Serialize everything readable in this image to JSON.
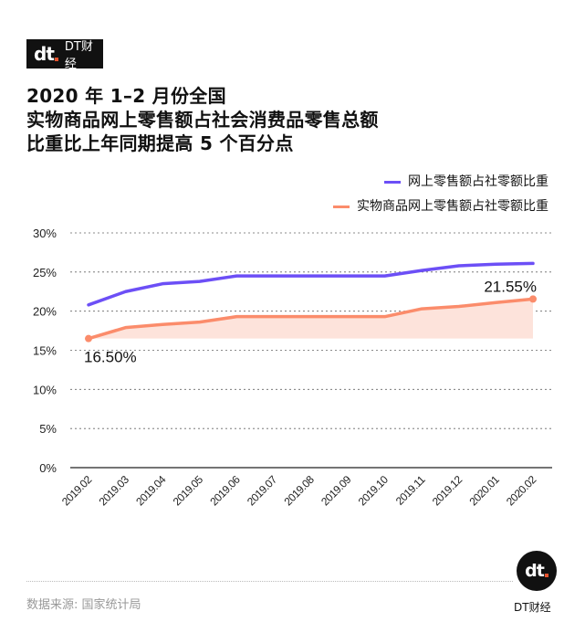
{
  "brand": {
    "mark": "dt",
    "name": "DT财经"
  },
  "title_lines": [
    "2020 年 1–2 月份全国",
    "实物商品网上零售额占社会消费品零售总额",
    "比重比上年同期提高 5 个百分点"
  ],
  "colors": {
    "series1": "#6c4ff6",
    "series2": "#fb8c6b",
    "fill2": "#fde3db"
  },
  "chart_data": {
    "type": "line",
    "title": "2020 年 1–2 月份全国实物商品网上零售额占社会消费品零售总额比重比上年同期提高 5 个百分点",
    "categories": [
      "2019.02",
      "2019.03",
      "2019.04",
      "2019.05",
      "2019.06",
      "2019.07",
      "2019.08",
      "2019.09",
      "2019.10",
      "2019.11",
      "2019.12",
      "2020.01",
      "2020.02"
    ],
    "series": [
      {
        "name": "网上零售额占社零额比重",
        "values": [
          20.8,
          22.5,
          23.5,
          23.8,
          24.5,
          24.5,
          24.5,
          24.5,
          24.5,
          25.2,
          25.8,
          26.0,
          26.1
        ]
      },
      {
        "name": "实物商品网上零售额占社零额比重",
        "values": [
          16.5,
          17.9,
          18.3,
          18.6,
          19.3,
          19.3,
          19.3,
          19.3,
          19.3,
          20.3,
          20.6,
          21.1,
          21.55
        ]
      }
    ],
    "yticks": [
      "0%",
      "5%",
      "10%",
      "15%",
      "20%",
      "25%",
      "30%"
    ],
    "ytick_values": [
      0,
      5,
      10,
      15,
      20,
      25,
      30
    ],
    "ylim": [
      0,
      30
    ],
    "grid": true,
    "legend": "top-right",
    "annotations": [
      "16.50%",
      "21.55%"
    ]
  },
  "footer": {
    "source": "数据来源: 国家统计局",
    "badge_name": "DT财经"
  }
}
